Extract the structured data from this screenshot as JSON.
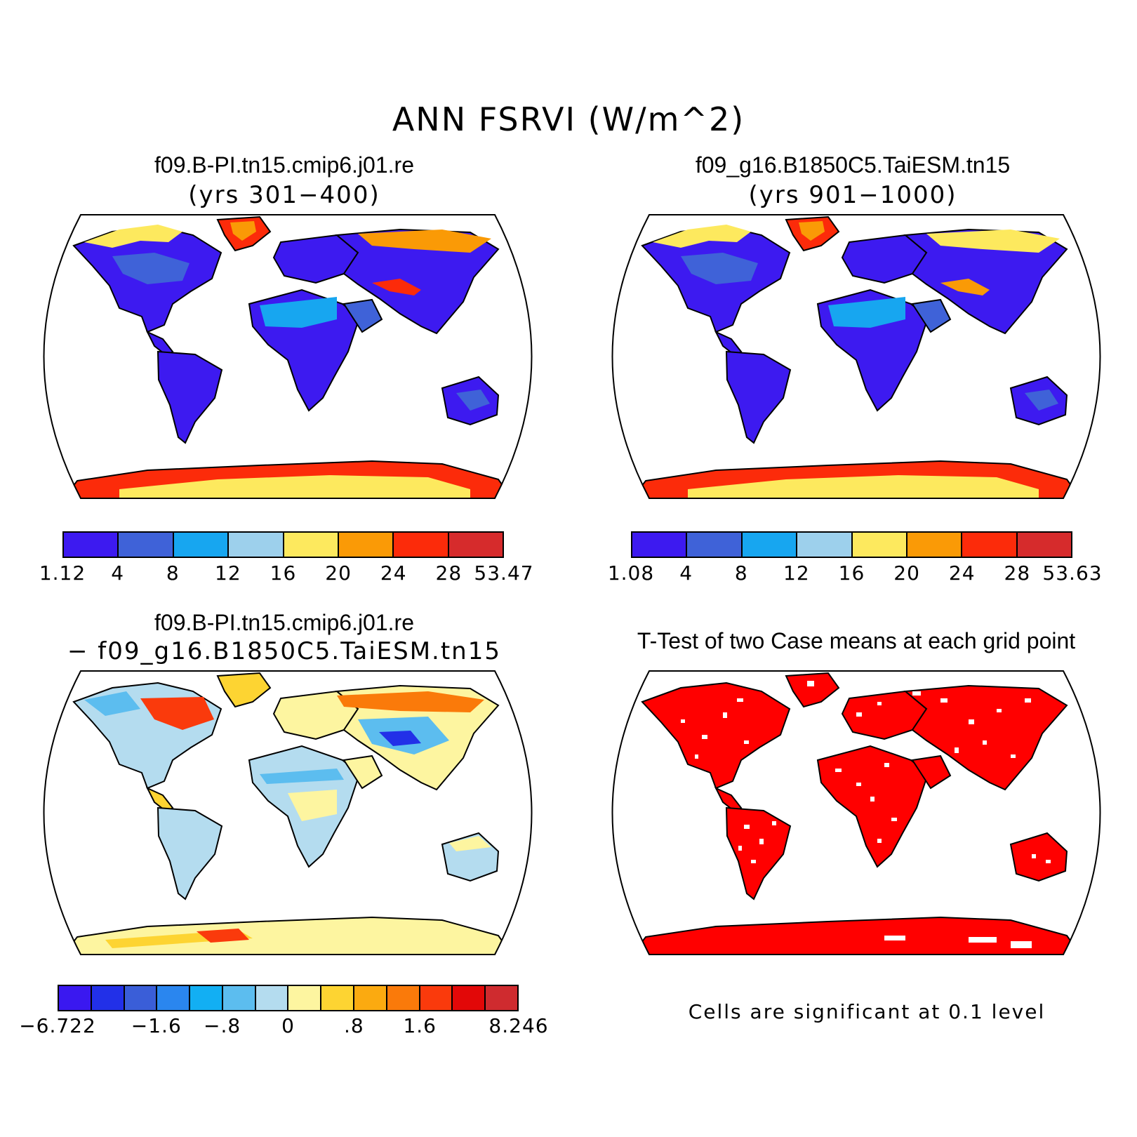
{
  "figure": {
    "title": "ANN FSRVI (W/m^2)"
  },
  "panels": {
    "case1": {
      "title": "f09.B-PI.tn15.cmip6.j01.re",
      "subtitle": "(yrs 301−400)",
      "colorbar": {
        "colors": [
          "#3d1af0",
          "#3f62d8",
          "#17a6f0",
          "#9dd0ec",
          "#fde95e",
          "#fa9a06",
          "#fc2b0a",
          "#d62b2c"
        ],
        "labels": [
          "1.12",
          "4",
          "8",
          "12",
          "16",
          "20",
          "24",
          "28",
          "53.47"
        ]
      }
    },
    "case2": {
      "title": "f09_g16.B1850C5.TaiESM.tn15",
      "subtitle": "(yrs 901−1000)",
      "colorbar": {
        "colors": [
          "#3d1af0",
          "#3f62d8",
          "#17a6f0",
          "#9dd0ec",
          "#fde95e",
          "#fa9a06",
          "#fc2b0a",
          "#d62b2c"
        ],
        "labels": [
          "1.08",
          "4",
          "8",
          "12",
          "16",
          "20",
          "24",
          "28",
          "53.63"
        ]
      }
    },
    "diff": {
      "title": "f09.B-PI.tn15.cmip6.j01.re",
      "subtitle": "− f09_g16.B1850C5.TaiESM.tn15",
      "colorbar": {
        "colors": [
          "#3a18f0",
          "#2230e8",
          "#3a5ed8",
          "#2a86ef",
          "#12aff3",
          "#5cbdef",
          "#b4dcef",
          "#fdf5a0",
          "#fdd432",
          "#fbaa10",
          "#fa7a0a",
          "#fa3a0c",
          "#e20808",
          "#cf2b2f"
        ],
        "labels": [
          "−6.722",
          "−1.6",
          "−.8",
          "0",
          ".8",
          "1.6",
          "8.246"
        ]
      }
    },
    "ttest": {
      "title": "T-Test of two Case means at each grid point",
      "note": "Cells are significant at 0.1 level",
      "significant_color": "#ff0000"
    }
  }
}
